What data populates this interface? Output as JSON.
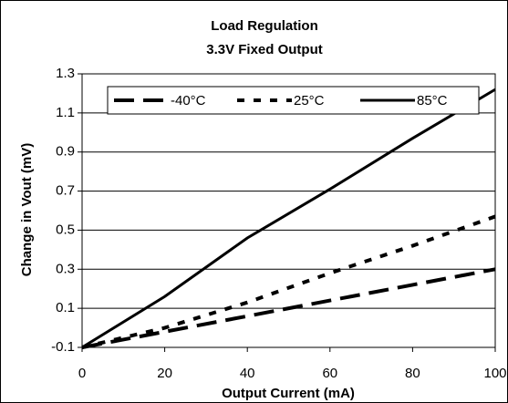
{
  "chart_data": {
    "type": "line",
    "title": "Load Regulation",
    "subtitle": "3.3V Fixed Output",
    "x_label": "Output Current (mA)",
    "y_label": "Change in Vout (mV)",
    "x": [
      0,
      20,
      40,
      60,
      80,
      100
    ],
    "series": [
      {
        "name": "-40°C",
        "color": "#000000",
        "dash": "22,10",
        "values": [
          -0.1,
          -0.02,
          0.06,
          0.14,
          0.22,
          0.3
        ]
      },
      {
        "name": "25°C",
        "color": "#000000",
        "dash": "8,10",
        "values": [
          -0.1,
          0.0,
          0.13,
          0.28,
          0.42,
          0.57
        ]
      },
      {
        "name": "85°C",
        "color": "#000000",
        "dash": "none",
        "values": [
          -0.1,
          0.16,
          0.46,
          0.71,
          0.97,
          1.22
        ]
      }
    ],
    "xlim": [
      0,
      100
    ],
    "xticks": [
      0,
      20,
      40,
      60,
      80,
      100
    ],
    "ylim": [
      -0.1,
      1.3
    ],
    "yticks": [
      -0.1,
      0.1,
      0.3,
      0.5,
      0.7,
      0.9,
      1.1,
      1.3
    ],
    "grid": true,
    "legend": "top"
  }
}
